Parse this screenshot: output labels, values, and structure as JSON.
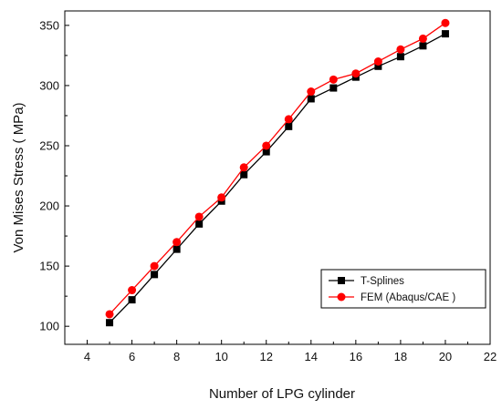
{
  "chart_data": {
    "type": "line",
    "xlabel": "Number of LPG cylinder",
    "ylabel": "Von Mises Stress ( MPa)",
    "xlim": [
      3,
      22
    ],
    "ylim": [
      85,
      362
    ],
    "xticks": [
      4,
      6,
      8,
      10,
      12,
      14,
      16,
      18,
      20,
      22
    ],
    "yticks": [
      100,
      150,
      200,
      250,
      300,
      350
    ],
    "grid": false,
    "legend_position": "bottom-right",
    "x": [
      5,
      6,
      7,
      8,
      9,
      10,
      11,
      12,
      13,
      14,
      15,
      16,
      17,
      18,
      19,
      20
    ],
    "series": [
      {
        "name": "T-Splines",
        "marker": "square",
        "color": "#000000",
        "values": [
          103,
          122,
          143,
          164,
          185,
          204,
          226,
          245,
          266,
          289,
          298,
          307,
          316,
          324,
          333,
          343
        ]
      },
      {
        "name": "FEM (Abaqus/CAE )",
        "marker": "circle",
        "color": "#ff0000",
        "values": [
          110,
          130,
          150,
          170,
          191,
          207,
          232,
          250,
          272,
          295,
          305,
          310,
          320,
          330,
          339,
          352
        ]
      }
    ]
  }
}
